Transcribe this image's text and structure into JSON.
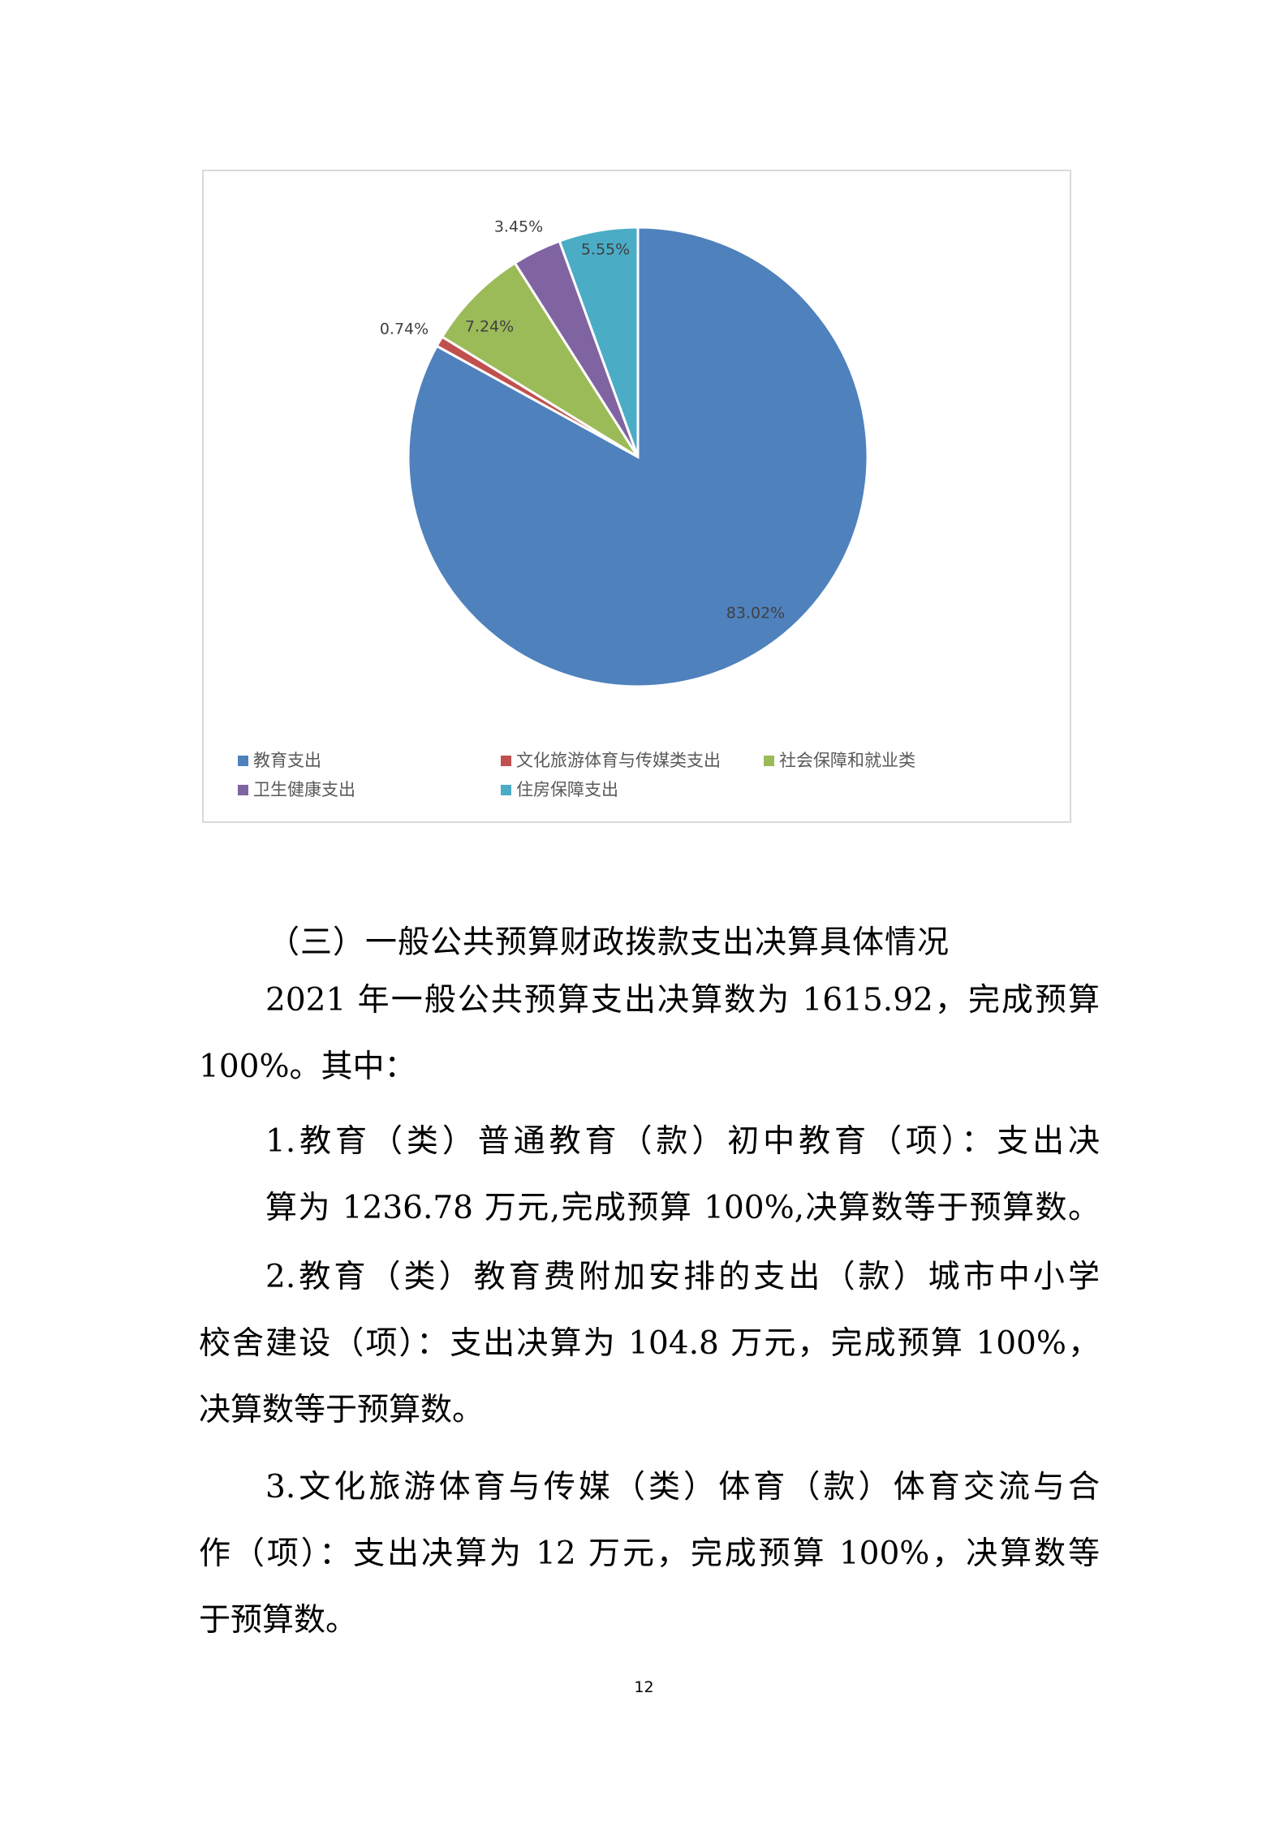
{
  "chart_data": {
    "type": "pie",
    "start": "top",
    "direction": "clockwise",
    "legend_position": "bottom",
    "slices": [
      {
        "name": "教育支出",
        "value": 83.02,
        "label": "83.02%",
        "color": "#4f81bd"
      },
      {
        "name": "文化旅游体育与传媒类支出",
        "value": 0.74,
        "label": "0.74%",
        "color": "#c0504d"
      },
      {
        "name": "社会保障和就业类",
        "value": 7.24,
        "label": "7.24%",
        "color": "#9bbb59"
      },
      {
        "name": "卫生健康支出",
        "value": 3.45,
        "label": "3.45%",
        "color": "#8064a2"
      },
      {
        "name": "住房保障支出",
        "value": 5.55,
        "label": "5.55%",
        "color": "#4bacc6"
      }
    ]
  },
  "heading": "（三）一般公共预算财政拨款支出决算具体情况",
  "paragraphs": [
    {
      "lines": [
        "2021 年一般公共预算支出决算数为 1615.92，完成预算",
        "100%。其中："
      ]
    },
    {
      "lines": [
        "1.教育（类）普通教育（款）初中教育（项）：支出决",
        "算为 1236.78 万元,完成预算 100%,决算数等于预算数。"
      ]
    },
    {
      "lines": [
        "2.教育（类）教育费附加安排的支出（款）城市中小学",
        "校舍建设（项）：支出决算为 104.8 万元，完成预算 100%，",
        "决算数等于预算数。"
      ]
    },
    {
      "lines": [
        "3.文化旅游体育与传媒（类）体育（款）体育交流与合",
        "作（项）：支出决算为 12 万元，完成预算 100%，决算数等",
        "于预算数。"
      ]
    }
  ],
  "page_number": "12"
}
